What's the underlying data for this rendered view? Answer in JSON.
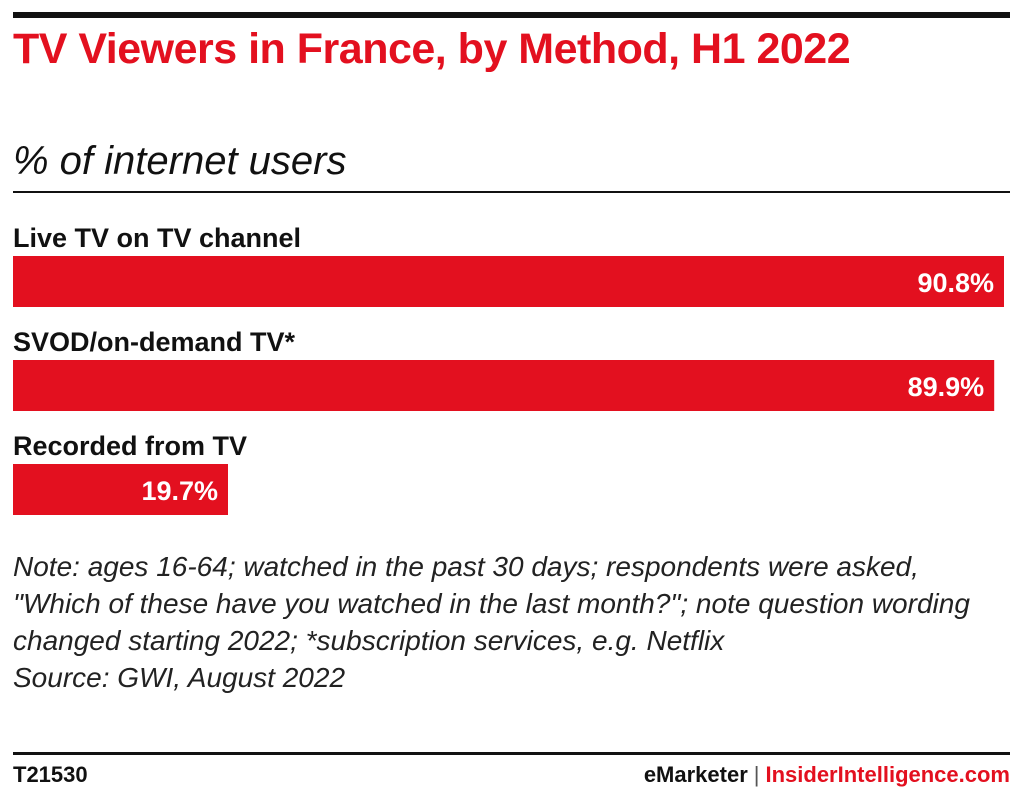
{
  "header": {
    "title": "TV Viewers in France, by Method, H1 2022",
    "subtitle": "% of internet users"
  },
  "colors": {
    "bar": "#e3101f",
    "text": "#111111",
    "accent": "#e3101f"
  },
  "chart_data": {
    "type": "bar",
    "orientation": "horizontal",
    "title": "TV Viewers in France, by Method, H1 2022",
    "subtitle": "% of internet users",
    "xlabel": "",
    "ylabel": "",
    "categories": [
      "Live TV on TV channel",
      "SVOD/on-demand TV*",
      "Recorded from TV"
    ],
    "values": [
      90.8,
      89.9,
      19.7
    ],
    "value_labels": [
      "90.8%",
      "89.9%",
      "19.7%"
    ],
    "xlim": [
      0,
      90.8
    ],
    "grid": false,
    "legend": "none"
  },
  "notes": {
    "note_label": "Note:",
    "note_text": " ages 16-64; watched in the past 30 days; respondents were asked, \"Which of these have you watched in the last month?\"; note question wording changed starting 2022; *subscription services, e.g. Netflix",
    "source": "Source: GWI, August 2022"
  },
  "footer": {
    "chart_id": "T21530",
    "brand_emarketer": "eMarketer",
    "separator": "|",
    "brand_insider": "InsiderIntelligence.com"
  }
}
